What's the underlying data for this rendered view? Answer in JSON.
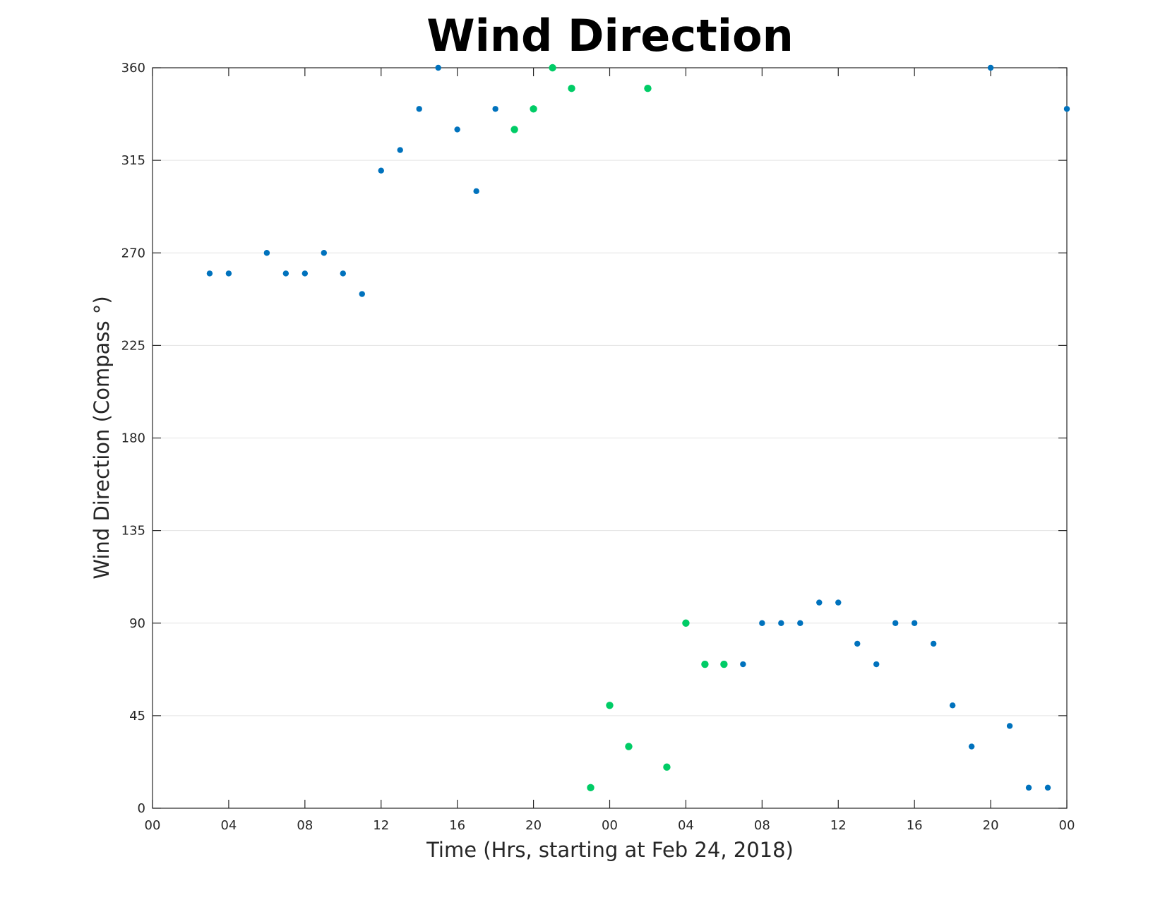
{
  "chart_data": {
    "type": "scatter",
    "title": "Wind Direction",
    "xlabel": "Time (Hrs, starting at Feb 24, 2018)",
    "ylabel": "Wind Direction (Compass °)",
    "xlim": [
      0,
      48
    ],
    "ylim": [
      0,
      360
    ],
    "x_ticks": [
      0,
      4,
      8,
      12,
      16,
      20,
      24,
      28,
      32,
      36,
      40,
      44,
      48
    ],
    "x_tick_labels": [
      "00",
      "04",
      "08",
      "12",
      "16",
      "20",
      "00",
      "04",
      "08",
      "12",
      "16",
      "20",
      "00"
    ],
    "y_ticks": [
      0,
      45,
      90,
      135,
      180,
      225,
      270,
      315,
      360
    ],
    "y_tick_labels": [
      "0",
      "45",
      "90",
      "135",
      "180",
      "225",
      "270",
      "315",
      "360"
    ],
    "grid": "horizontal",
    "colors": {
      "blue": "#0072BD",
      "green": "#00CC66"
    },
    "series": [
      {
        "color": "#0072BD",
        "points": [
          [
            3,
            260
          ],
          [
            4,
            260
          ],
          [
            6,
            270
          ],
          [
            7,
            260
          ],
          [
            8,
            260
          ],
          [
            9,
            270
          ],
          [
            10,
            260
          ],
          [
            11,
            250
          ],
          [
            12,
            310
          ],
          [
            13,
            320
          ],
          [
            14,
            340
          ],
          [
            15,
            360
          ],
          [
            16,
            330
          ],
          [
            17,
            300
          ],
          [
            18,
            340
          ],
          [
            31,
            70
          ],
          [
            32,
            90
          ],
          [
            33,
            90
          ],
          [
            34,
            90
          ],
          [
            35,
            100
          ],
          [
            36,
            100
          ],
          [
            37,
            80
          ],
          [
            38,
            70
          ],
          [
            39,
            90
          ],
          [
            40,
            90
          ],
          [
            41,
            80
          ],
          [
            42,
            50
          ],
          [
            43,
            30
          ],
          [
            44,
            360
          ],
          [
            45,
            40
          ],
          [
            46,
            10
          ],
          [
            47,
            10
          ],
          [
            48,
            340
          ]
        ]
      },
      {
        "color": "#00CC66",
        "points": [
          [
            19,
            330
          ],
          [
            20,
            340
          ],
          [
            21,
            360
          ],
          [
            22,
            350
          ],
          [
            23,
            10
          ],
          [
            24,
            50
          ],
          [
            25,
            30
          ],
          [
            26,
            350
          ],
          [
            27,
            20
          ],
          [
            28,
            90
          ],
          [
            29,
            70
          ],
          [
            30,
            70
          ]
        ]
      }
    ]
  }
}
